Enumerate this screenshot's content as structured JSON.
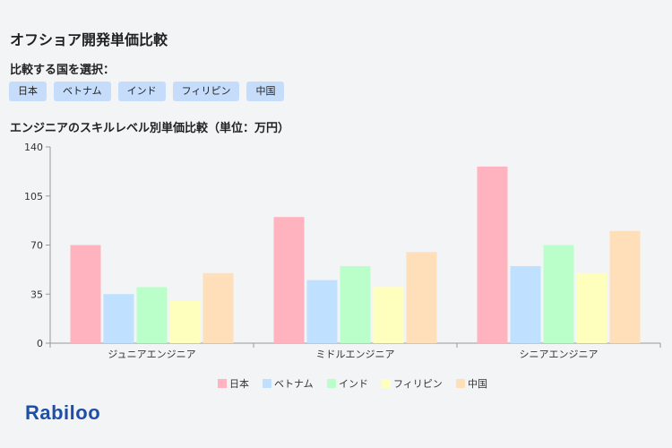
{
  "page": {
    "title": "オフショア開発単価比較",
    "select_label": "比較する国を選択：",
    "countries": [
      "日本",
      "ベトナム",
      "インド",
      "フィリピン",
      "中国"
    ],
    "logo": "Rabiloo"
  },
  "chart_data": {
    "type": "bar",
    "title": "エンジニアのスキルレベル別単価比較（単位：万円）",
    "categories": [
      "ジュニアエンジニア",
      "ミドルエンジニア",
      "シニアエンジニア"
    ],
    "series": [
      {
        "name": "日本",
        "color": "#ffb3bf",
        "values": [
          70,
          90,
          126
        ]
      },
      {
        "name": "ベトナム",
        "color": "#bfe0ff",
        "values": [
          35,
          45,
          55
        ]
      },
      {
        "name": "インド",
        "color": "#baffc9",
        "values": [
          40,
          55,
          70
        ]
      },
      {
        "name": "フィリピン",
        "color": "#ffffbd",
        "values": [
          30,
          40,
          50
        ]
      },
      {
        "name": "中国",
        "color": "#ffdfba",
        "values": [
          50,
          65,
          80
        ]
      }
    ],
    "ylim": [
      0,
      140
    ],
    "yticks": [
      0,
      35,
      70,
      105,
      140
    ],
    "legend": "bottom"
  }
}
